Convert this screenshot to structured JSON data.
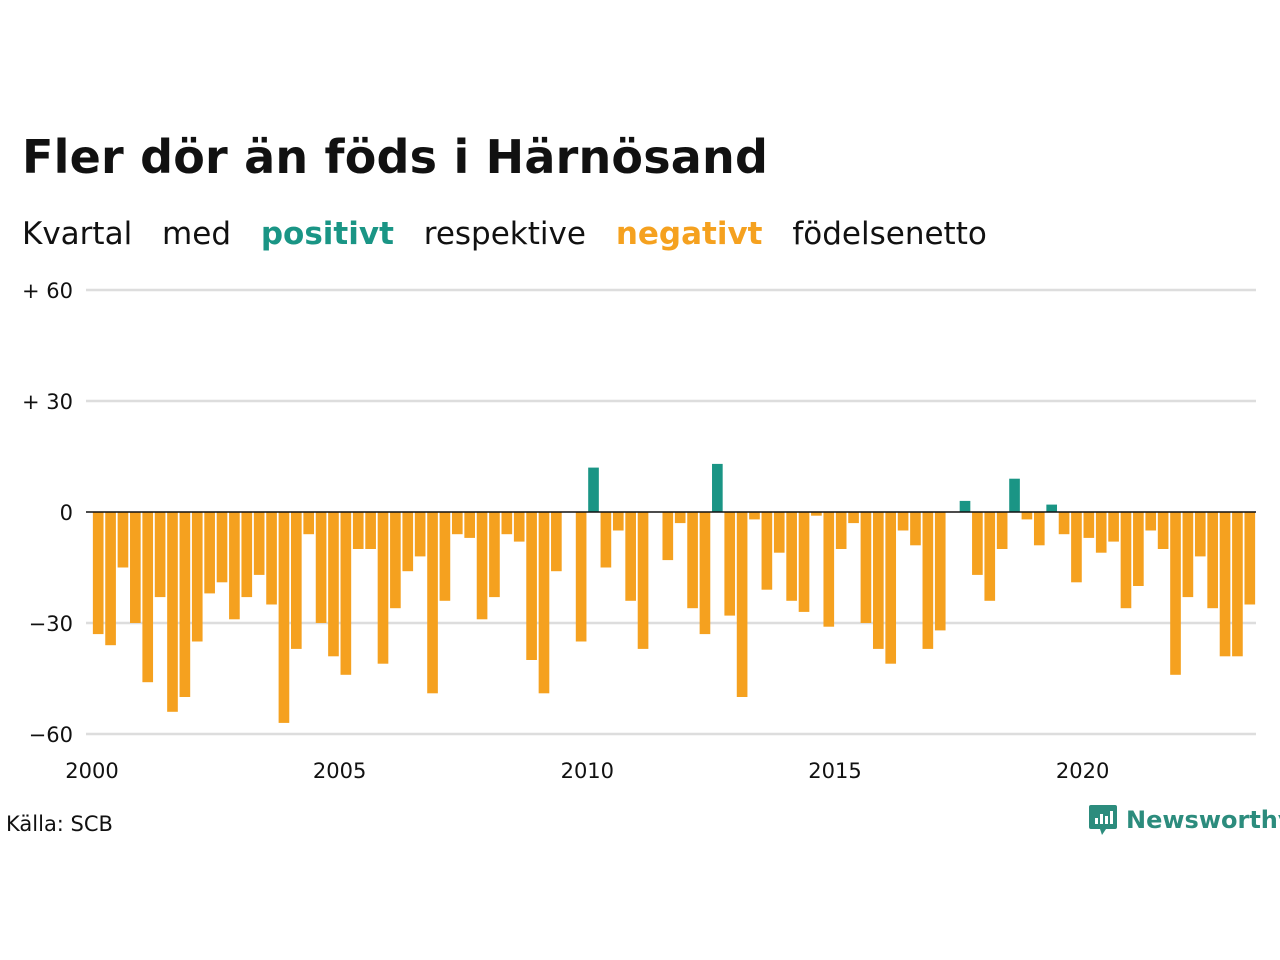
{
  "title": "Fler dör än föds i Härnösand",
  "subtitle": {
    "w1": "Kvartal",
    "w2": "med",
    "positive": "positivt",
    "w3": "respektive",
    "negative": "negativt",
    "w4": "födelsenetto"
  },
  "source": "Källa: SCB",
  "brand": "Newsworthy",
  "colors": {
    "positive": "#1a9585",
    "negative": "#f5a11f",
    "grid": "#dddddd",
    "zero": "#111111",
    "brand": "#2c8c7d"
  },
  "chart_data": {
    "type": "bar",
    "x_start": "2000 Q1",
    "x_end": "2023 Q2",
    "x_ticks": [
      "2000",
      "2005",
      "2010",
      "2015",
      "2020"
    ],
    "y_ticks": [
      "+ 60",
      "+ 30",
      "0",
      "−30",
      "−60"
    ],
    "y_tick_values": [
      60,
      30,
      0,
      -30,
      -60
    ],
    "ylim": [
      -62,
      60
    ],
    "grid": true,
    "values": [
      -33,
      -36,
      -15,
      -30,
      -46,
      -23,
      -54,
      -50,
      -35,
      -22,
      -19,
      -29,
      -23,
      -17,
      -25,
      -57,
      -37,
      -6,
      -30,
      -39,
      -44,
      -10,
      -10,
      -41,
      -26,
      -16,
      -12,
      -49,
      -24,
      -6,
      -7,
      -29,
      -23,
      -6,
      -8,
      -40,
      -49,
      -16,
      0,
      -35,
      12,
      -15,
      -5,
      -24,
      -37,
      0,
      -13,
      -3,
      -26,
      -33,
      13,
      -28,
      -50,
      -2,
      -21,
      -11,
      -24,
      -27,
      -1,
      -31,
      -10,
      -3,
      -30,
      -37,
      -41,
      -5,
      -9,
      -37,
      -32,
      0,
      3,
      -17,
      -24,
      -10,
      9,
      -2,
      -9,
      2,
      -6,
      -19,
      -7,
      -11,
      -8,
      -26,
      -20,
      -5,
      -10,
      -44,
      -23,
      -12,
      -26,
      -39,
      -39,
      -25
    ]
  }
}
